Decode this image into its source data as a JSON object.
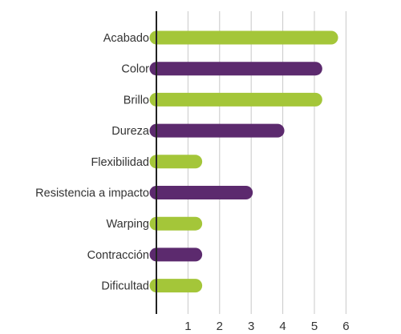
{
  "chart_data": {
    "type": "bar",
    "orientation": "horizontal",
    "categories": [
      "Acabado",
      "Color",
      "Brillo",
      "Dureza",
      "Flexibilidad",
      "Resistencia a impacto",
      "Warping",
      "Contracción",
      "Dificultad"
    ],
    "values": [
      5.75,
      5.25,
      5.25,
      4.05,
      1.45,
      3.05,
      1.45,
      1.45,
      1.45
    ],
    "bar_colors": [
      "#a4c639",
      "#5c2a6e",
      "#a4c639",
      "#5c2a6e",
      "#a4c639",
      "#5c2a6e",
      "#a4c639",
      "#5c2a6e",
      "#a4c639"
    ],
    "x_ticks": [
      1,
      2,
      3,
      4,
      5,
      6
    ],
    "xlim": [
      0,
      6
    ],
    "grid": "vertical",
    "title": "",
    "xlabel": "",
    "ylabel": ""
  }
}
